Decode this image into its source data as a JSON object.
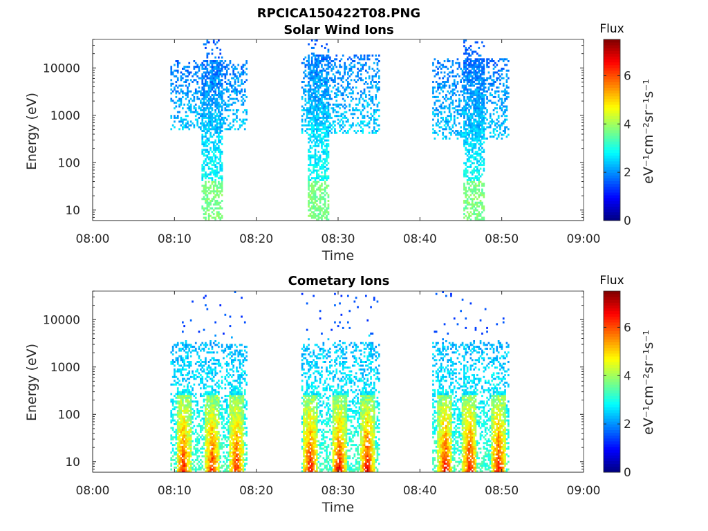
{
  "figure": {
    "title": "RPCICA150422T08.PNG"
  },
  "chart_data": [
    {
      "type": "heatmap",
      "title": "Solar Wind Ions",
      "xlabel": "Time",
      "ylabel": "Energy (eV)",
      "yscale": "log",
      "xlim": [
        "08:00",
        "09:00"
      ],
      "ylim": [
        6,
        40000
      ],
      "x_ticks": [
        "08:00",
        "08:10",
        "08:20",
        "08:30",
        "08:40",
        "08:50",
        "09:00"
      ],
      "y_ticks": [
        "10",
        "100",
        "1000",
        "10000"
      ],
      "y_tick_values": [
        10,
        100,
        1000,
        10000
      ],
      "colorbar": {
        "title": "Flux",
        "label": "eV⁻¹cm⁻²sr⁻¹s⁻¹",
        "range": [
          0,
          7.5
        ],
        "ticks": [
          "0",
          "2",
          "4",
          "6"
        ],
        "tick_values": [
          0,
          2,
          4,
          6
        ],
        "colormap": "jet"
      },
      "bursts": [
        {
          "start_min": 9.5,
          "end_min": 18.7,
          "emin": 500,
          "emax": 14000,
          "peak_min": 14.5,
          "peak_flux": 2.3,
          "low_flux": 3.2
        },
        {
          "start_min": 25.5,
          "end_min": 35.0,
          "emin": 400,
          "emax": 20000,
          "peak_min": 27.5,
          "peak_flux": 2.2,
          "low_flux": 3.3
        },
        {
          "start_min": 41.5,
          "end_min": 50.8,
          "emin": 300,
          "emax": 16000,
          "peak_min": 46.5,
          "peak_flux": 2.2,
          "low_flux": 3.2
        }
      ]
    },
    {
      "type": "heatmap",
      "title": "Cometary Ions",
      "xlabel": "Time",
      "ylabel": "Energy (eV)",
      "yscale": "log",
      "xlim": [
        "08:00",
        "09:00"
      ],
      "ylim": [
        6,
        40000
      ],
      "x_ticks": [
        "08:00",
        "08:10",
        "08:20",
        "08:30",
        "08:40",
        "08:50",
        "09:00"
      ],
      "y_ticks": [
        "10",
        "100",
        "1000",
        "10000"
      ],
      "y_tick_values": [
        10,
        100,
        1000,
        10000
      ],
      "colorbar": {
        "title": "Flux",
        "label": "eV⁻¹cm⁻²sr⁻¹s⁻¹",
        "range": [
          0,
          7.5
        ],
        "ticks": [
          "0",
          "2",
          "4",
          "6"
        ],
        "tick_values": [
          0,
          2,
          4,
          6
        ],
        "colormap": "jet"
      },
      "bursts": [
        {
          "start_min": 9.5,
          "end_min": 18.7,
          "emin": 6,
          "emax": 3500,
          "hot_columns": [
            11.0,
            14.5,
            17.5
          ],
          "hot_flux": 6.5
        },
        {
          "start_min": 25.5,
          "end_min": 35.0,
          "emin": 6,
          "emax": 3500,
          "hot_columns": [
            26.5,
            30.0,
            33.5
          ],
          "hot_flux": 6.8
        },
        {
          "start_min": 41.5,
          "end_min": 50.8,
          "emin": 6,
          "emax": 3500,
          "hot_columns": [
            43.0,
            46.0,
            49.5
          ],
          "hot_flux": 6.8
        }
      ]
    }
  ]
}
